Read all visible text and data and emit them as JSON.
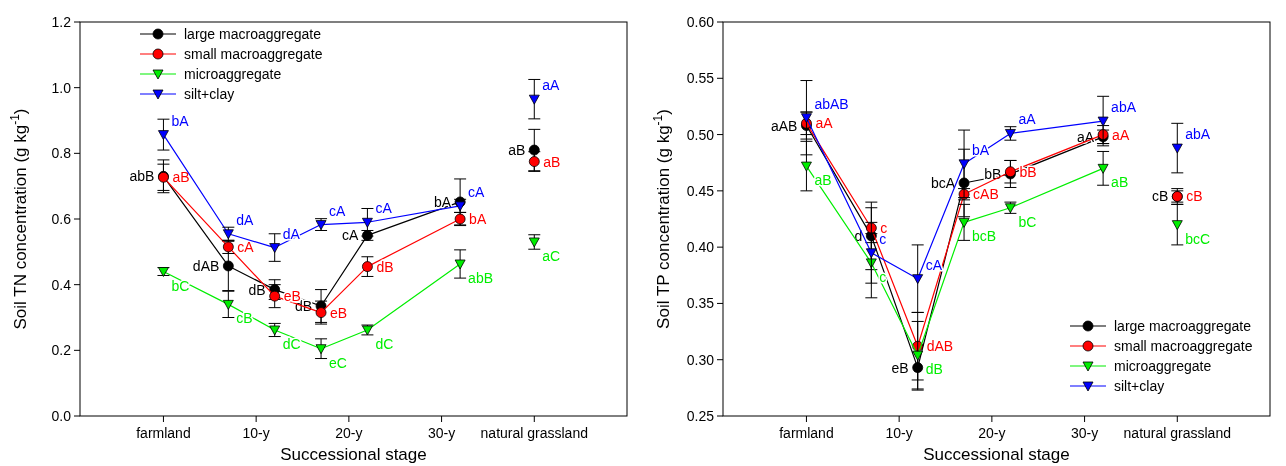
{
  "chart_data": [
    {
      "type": "line",
      "xlabel": "Successional stage",
      "ylabel": "Soil TN concentration (g kg$^{-1}$)",
      "x": [
        0,
        7,
        12,
        17,
        22,
        32,
        40
      ],
      "xlim": [
        -9,
        50
      ],
      "xticks": [
        {
          "value": 0,
          "label": "farmland"
        },
        {
          "value": 10,
          "label": "10-y"
        },
        {
          "value": 20,
          "label": "20-y"
        },
        {
          "value": 30,
          "label": "30-y"
        },
        {
          "value": 40,
          "label": "natural grassland"
        }
      ],
      "ylim": [
        0,
        1.2
      ],
      "yticks": [
        {
          "value": 0,
          "label": "0.0"
        },
        0.2,
        0.4,
        0.6,
        0.8,
        {
          "value": 1,
          "label": "1.0"
        },
        1.2
      ],
      "legend": "top left",
      "grid": false,
      "series": [
        {
          "name": "large macroaggregate",
          "color": "#000000",
          "marker": "circle",
          "values": [
            0.73,
            0.457,
            0.385,
            0.335,
            0.55,
            0.652,
            null
          ],
          "errors": [
            0.05,
            0.075,
            0.03,
            0.05,
            0.015,
            0.07,
            null
          ],
          "value_labels": [
            "abB",
            "dAB",
            "dB",
            "dB",
            "cA",
            "bA",
            null
          ]
        },
        {
          "name": "small macroaggregate",
          "color": "#ff0000",
          "marker": "circle",
          "values": [
            0.727,
            0.515,
            0.365,
            0.315,
            0.455,
            0.6,
            null
          ],
          "errors": [
            0.04,
            0.02,
            0.035,
            0.035,
            0.03,
            0.02,
            null
          ],
          "value_labels": [
            "aB",
            "cA",
            "eB",
            "eB",
            "dB",
            "bA",
            null
          ]
        },
        {
          "name": "microaggregate",
          "color": "#00ee00",
          "marker": "triangle",
          "values": [
            0.44,
            0.34,
            0.262,
            0.205,
            0.262,
            0.463,
            null
          ],
          "errors": [
            0.012,
            0.04,
            0.02,
            0.03,
            0.015,
            0.043,
            null
          ],
          "value_labels": [
            "bC",
            "cB",
            "dC",
            "eC",
            "dC",
            "abB",
            null
          ]
        },
        {
          "name": "silt+clay",
          "color": "#0000ff",
          "marker": "triangle",
          "values": [
            0.857,
            0.555,
            0.513,
            0.583,
            0.59,
            0.64,
            null
          ],
          "errors": [
            0.047,
            0.02,
            0.042,
            0.018,
            0.042,
            0.02,
            null
          ],
          "value_labels": [
            "bA",
            "dA",
            "dA",
            "cA",
            "cA",
            "cA",
            null
          ]
        },
        {
          "type": "scatter",
          "color": "#000000",
          "marker": "circle",
          "values": [
            null,
            null,
            null,
            null,
            null,
            null,
            0.81
          ],
          "errors": [
            null,
            null,
            null,
            null,
            null,
            null,
            0.063
          ],
          "value_labels": [
            null,
            null,
            null,
            null,
            null,
            null,
            "aB"
          ]
        },
        {
          "type": "scatter",
          "color": "#ff0000",
          "marker": "circle",
          "values": [
            null,
            null,
            null,
            null,
            null,
            null,
            0.775
          ],
          "errors": [
            null,
            null,
            null,
            null,
            null,
            null,
            0.03
          ],
          "value_labels": [
            null,
            null,
            null,
            null,
            null,
            null,
            "aB"
          ]
        },
        {
          "type": "scatter",
          "color": "#00ee00",
          "marker": "triangle",
          "values": [
            null,
            null,
            null,
            null,
            null,
            null,
            0.53
          ],
          "errors": [
            null,
            null,
            null,
            null,
            null,
            null,
            0.022
          ],
          "value_labels": [
            null,
            null,
            null,
            null,
            null,
            null,
            "aC"
          ]
        },
        {
          "type": "scatter",
          "color": "#0000ff",
          "marker": "triangle",
          "values": [
            null,
            null,
            null,
            null,
            null,
            null,
            0.965
          ],
          "errors": [
            null,
            null,
            null,
            null,
            null,
            null,
            0.06
          ],
          "value_labels": [
            null,
            null,
            null,
            null,
            null,
            null,
            "aA"
          ]
        }
      ]
    },
    {
      "type": "line",
      "xlabel": "Successional stage",
      "ylabel": "Soil TP concentration (g kg$^{-1}$)",
      "x": [
        0,
        7,
        12,
        17,
        22,
        32,
        40
      ],
      "xlim": [
        -9,
        50
      ],
      "xticks": [
        {
          "value": 0,
          "label": "farmland"
        },
        {
          "value": 10,
          "label": "10-y"
        },
        {
          "value": 20,
          "label": "20-y"
        },
        {
          "value": 30,
          "label": "30-y"
        },
        {
          "value": 40,
          "label": "natural grassland"
        }
      ],
      "ylim": [
        0.25,
        0.6
      ],
      "yticks": [
        0.25,
        {
          "value": 0.3,
          "label": "0.30"
        },
        0.35,
        {
          "value": 0.4,
          "label": "0.40"
        },
        0.45,
        {
          "value": 0.5,
          "label": "0.50"
        },
        0.55,
        {
          "value": 0.6,
          "label": "0.60"
        }
      ],
      "legend": "bottom right",
      "grid": false,
      "series": [
        {
          "name": "large macroaggregate",
          "color": "#000000",
          "marker": "circle",
          "values": [
            0.508,
            0.41,
            0.293,
            0.457,
            0.465,
            0.498,
            null
          ],
          "errors": [
            0.012,
            0.03,
            0.02,
            0.03,
            0.012,
            0.006,
            null
          ],
          "value_labels": [
            "aAB",
            "d",
            "eB",
            "bcA",
            "bB",
            "aA",
            null
          ]
        },
        {
          "name": "small macroaggregate",
          "color": "#ff0000",
          "marker": "circle",
          "values": [
            0.51,
            0.417,
            0.312,
            0.447,
            0.467,
            0.5,
            null
          ],
          "errors": [
            0.01,
            0.005,
            0.03,
            0.005,
            0.01,
            0.008,
            null
          ],
          "value_labels": [
            "aA",
            "c",
            "dAB",
            "cAB",
            "bB",
            "aA",
            null
          ]
        },
        {
          "name": "microaggregate",
          "color": "#00ee00",
          "marker": "triangle",
          "values": [
            0.472,
            0.386,
            0.304,
            0.422,
            0.435,
            0.47,
            null
          ],
          "errors": [
            0.022,
            0.018,
            0.03,
            0.016,
            0.005,
            0.015,
            null
          ],
          "value_labels": [
            "aB",
            "c",
            "dB",
            "bcB",
            "bC",
            "aB",
            null
          ]
        },
        {
          "name": "silt+clay",
          "color": "#0000ff",
          "marker": "triangle",
          "values": [
            0.515,
            0.395,
            0.372,
            0.474,
            0.501,
            0.512,
            null
          ],
          "errors": [
            0.033,
            0.04,
            0.03,
            0.03,
            0.006,
            0.022,
            null
          ],
          "value_labels": [
            "abAB",
            "c",
            "cA",
            "bA",
            "aA",
            "abA",
            null
          ]
        },
        {
          "type": "scatter",
          "color": "#000000",
          "marker": "circle",
          "values": [
            null,
            null,
            null,
            null,
            null,
            null,
            0.445
          ],
          "errors": [
            null,
            null,
            null,
            null,
            null,
            null,
            0.005
          ],
          "value_labels": [
            null,
            null,
            null,
            null,
            null,
            null,
            "cB"
          ]
        },
        {
          "type": "scatter",
          "color": "#ff0000",
          "marker": "circle",
          "values": [
            null,
            null,
            null,
            null,
            null,
            null,
            0.445
          ],
          "errors": [
            null,
            null,
            null,
            null,
            null,
            null,
            0.007
          ],
          "value_labels": [
            null,
            null,
            null,
            null,
            null,
            null,
            "cB"
          ]
        },
        {
          "type": "scatter",
          "color": "#00ee00",
          "marker": "triangle",
          "values": [
            null,
            null,
            null,
            null,
            null,
            null,
            0.42
          ],
          "errors": [
            null,
            null,
            null,
            null,
            null,
            null,
            0.018
          ],
          "value_labels": [
            null,
            null,
            null,
            null,
            null,
            null,
            "bcC"
          ]
        },
        {
          "type": "scatter",
          "color": "#0000ff",
          "marker": "triangle",
          "values": [
            null,
            null,
            null,
            null,
            null,
            null,
            0.488
          ],
          "errors": [
            null,
            null,
            null,
            null,
            null,
            null,
            0.022
          ],
          "value_labels": [
            null,
            null,
            null,
            null,
            null,
            null,
            "abA"
          ]
        }
      ]
    }
  ]
}
